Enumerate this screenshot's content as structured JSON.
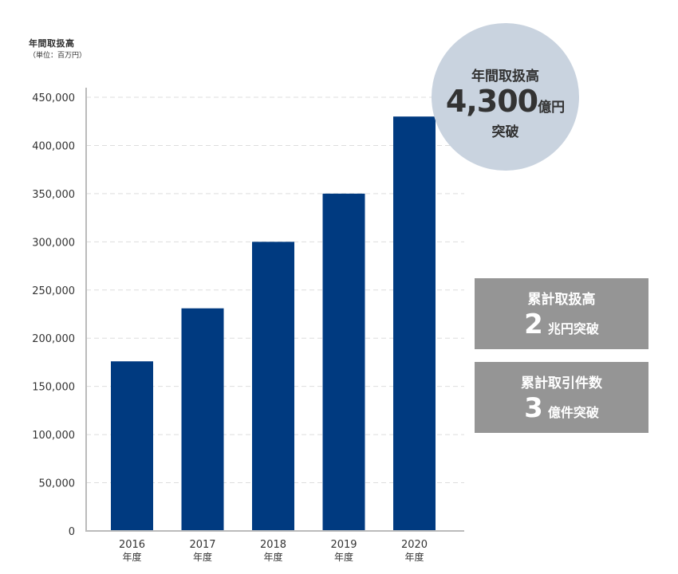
{
  "header": {
    "title": "年間取扱高",
    "unit": "（単位：百万円）"
  },
  "chart_data": {
    "type": "bar",
    "title": "年間取扱高",
    "ylabel": "（単位：百万円）",
    "categories": [
      "2016",
      "2017",
      "2018",
      "2019",
      "2020"
    ],
    "category_suffix": "年度",
    "values": [
      176000,
      231000,
      300000,
      350000,
      430000
    ],
    "ylim": [
      0,
      450000
    ],
    "yticks": [
      0,
      50000,
      100000,
      150000,
      200000,
      250000,
      300000,
      350000,
      400000,
      450000
    ],
    "ytick_labels": [
      "0",
      "50,000",
      "100,000",
      "150,000",
      "200,000",
      "250,000",
      "300,000",
      "350,000",
      "400,000",
      "450,000"
    ],
    "grid": true,
    "colors": {
      "bar": "#003a80",
      "axis": "#bbbbbb",
      "grid": "#dddddd"
    }
  },
  "highlight": {
    "label": "年間取扱高",
    "value": "4,300",
    "unit": "億円",
    "suffix": "突破",
    "bg": "#c9d3df"
  },
  "stats": [
    {
      "label": "累計取扱高",
      "value": "2",
      "unit": "兆円突破"
    },
    {
      "label": "累計取引件数",
      "value": "3",
      "unit": "億件突破"
    }
  ]
}
